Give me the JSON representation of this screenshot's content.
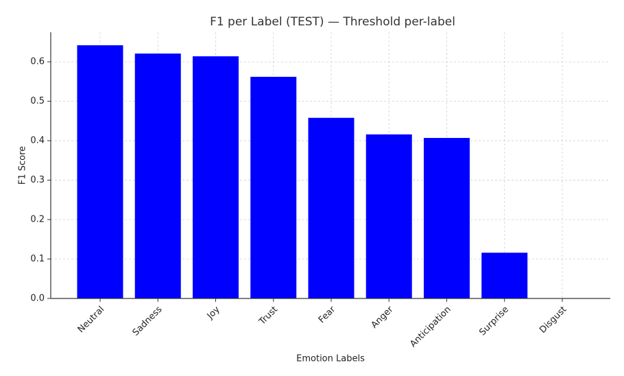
{
  "chart_data": {
    "type": "bar",
    "title": "F1 per Label (TEST) — Threshold per-label",
    "x_label": "Emotion Labels",
    "y_label": "F1 Score",
    "categories": [
      "Neutral",
      "Sadness",
      "Joy",
      "Trust",
      "Fear",
      "Anger",
      "Anticipation",
      "Surprise",
      "Disgust"
    ],
    "values": [
      0.642,
      0.621,
      0.614,
      0.562,
      0.458,
      0.416,
      0.407,
      0.116,
      0
    ],
    "color": "#0000ff",
    "ylim": [
      0,
      0.675
    ],
    "yticks": [
      {
        "value": 0,
        "label": "0.0"
      },
      0.1,
      0.2,
      0.3,
      0.4,
      0.5,
      0.6
    ],
    "grid": true
  }
}
